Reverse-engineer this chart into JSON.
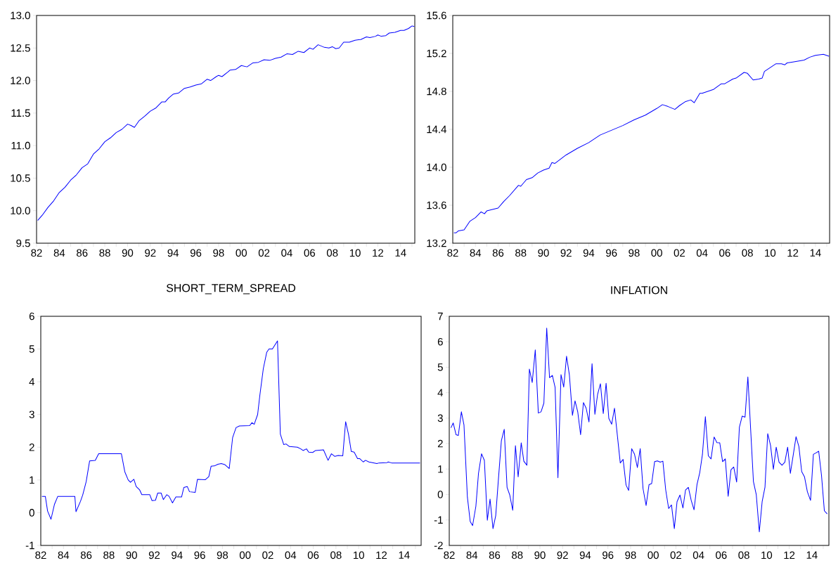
{
  "chart_data": [
    {
      "type": "line",
      "color": "#0000ff",
      "x": [
        1982.1,
        1982.5,
        1983.0,
        1983.5,
        1984.0,
        1984.5,
        1985.0,
        1985.5,
        1986.0,
        1986.5,
        1987.0,
        1987.5,
        1988.0,
        1988.5,
        1989.0,
        1989.5,
        1990.0,
        1990.3,
        1990.6,
        1991.0,
        1991.5,
        1992.0,
        1992.5,
        1993.0,
        1993.3,
        1993.6,
        1994.0,
        1994.5,
        1995.0,
        1995.5,
        1996.0,
        1996.5,
        1997.0,
        1997.3,
        1997.8,
        1998.0,
        1998.3,
        1998.8,
        1999.0,
        1999.5,
        2000.0,
        2000.5,
        2001.0,
        2001.5,
        2002.0,
        2002.5,
        2003.0,
        2003.5,
        2004.0,
        2004.5,
        2005.0,
        2005.5,
        2006.0,
        2006.3,
        2006.75,
        2007.3,
        2007.7,
        2008.0,
        2008.3,
        2008.6,
        2009.0,
        2009.5,
        2010.0,
        2010.5,
        2011.0,
        2011.3,
        2011.8,
        2012.0,
        2012.3,
        2012.7,
        2013.0,
        2013.5,
        2014.0,
        2014.3,
        2014.7,
        2015.0,
        2015.2
      ],
      "values": [
        9.85,
        9.93,
        10.05,
        10.15,
        10.28,
        10.36,
        10.47,
        10.55,
        10.66,
        10.72,
        10.87,
        10.95,
        11.06,
        11.12,
        11.2,
        11.25,
        11.33,
        11.31,
        11.28,
        11.38,
        11.45,
        11.53,
        11.58,
        11.67,
        11.67,
        11.73,
        11.79,
        11.81,
        11.88,
        11.9,
        11.93,
        11.95,
        12.02,
        12.0,
        12.06,
        12.08,
        12.06,
        12.13,
        12.16,
        12.17,
        12.23,
        12.21,
        12.27,
        12.28,
        12.32,
        12.31,
        12.34,
        12.36,
        12.41,
        12.4,
        12.45,
        12.43,
        12.5,
        12.48,
        12.55,
        12.51,
        12.5,
        12.52,
        12.49,
        12.5,
        12.59,
        12.59,
        12.62,
        12.63,
        12.67,
        12.66,
        12.68,
        12.7,
        12.68,
        12.69,
        12.73,
        12.74,
        12.77,
        12.77,
        12.8,
        12.84,
        12.83
      ],
      "xlim": [
        1982,
        2015.25
      ],
      "ylim": [
        9.5,
        13.0
      ],
      "xticks": [
        {
          "value": 1982,
          "label": "82"
        },
        {
          "value": 1983,
          "label": null
        },
        {
          "value": 1984,
          "label": "84"
        },
        {
          "value": 1985,
          "label": null
        },
        {
          "value": 1986,
          "label": "86"
        },
        {
          "value": 1987,
          "label": null
        },
        {
          "value": 1988,
          "label": "88"
        },
        {
          "value": 1989,
          "label": null
        },
        {
          "value": 1990,
          "label": "90"
        },
        {
          "value": 1991,
          "label": null
        },
        {
          "value": 1992,
          "label": "92"
        },
        {
          "value": 1993,
          "label": null
        },
        {
          "value": 1994,
          "label": "94"
        },
        {
          "value": 1995,
          "label": null
        },
        {
          "value": 1996,
          "label": "96"
        },
        {
          "value": 1997,
          "label": null
        },
        {
          "value": 1998,
          "label": "98"
        },
        {
          "value": 1999,
          "label": null
        },
        {
          "value": 2000,
          "label": "00"
        },
        {
          "value": 2001,
          "label": null
        },
        {
          "value": 2002,
          "label": "02"
        },
        {
          "value": 2003,
          "label": null
        },
        {
          "value": 2004,
          "label": "04"
        },
        {
          "value": 2005,
          "label": null
        },
        {
          "value": 2006,
          "label": "06"
        },
        {
          "value": 2007,
          "label": null
        },
        {
          "value": 2008,
          "label": "08"
        },
        {
          "value": 2009,
          "label": null
        },
        {
          "value": 2010,
          "label": "10"
        },
        {
          "value": 2011,
          "label": null
        },
        {
          "value": 2012,
          "label": "12"
        },
        {
          "value": 2013,
          "label": null
        },
        {
          "value": 2014,
          "label": "14"
        },
        {
          "value": 2015,
          "label": null
        }
      ],
      "yticks": [
        {
          "value": 9.5,
          "label": "9.5"
        },
        {
          "value": 10,
          "label": "10.0"
        },
        {
          "value": 10.5,
          "label": "10.5"
        },
        {
          "value": 11,
          "label": "11.0"
        },
        {
          "value": 11.5,
          "label": "11.5"
        },
        {
          "value": 12,
          "label": "12.0"
        },
        {
          "value": 12.5,
          "label": "12.5"
        },
        {
          "value": 13,
          "label": "13.0"
        }
      ]
    },
    {
      "type": "line",
      "color": "#0000ff",
      "x": [
        1982.1,
        1982.3,
        1982.5,
        1983.0,
        1983.5,
        1984.0,
        1984.5,
        1984.8,
        1985.0,
        1986.0,
        1986.5,
        1987.0,
        1987.8,
        1988.0,
        1988.5,
        1989.0,
        1989.5,
        1990.0,
        1990.5,
        1990.75,
        1991.0,
        1992.0,
        1993.0,
        1994.0,
        1995.0,
        1996.0,
        1997.0,
        1998.0,
        1999.0,
        2000.0,
        2000.5,
        2001.0,
        2001.6,
        2002.0,
        2002.5,
        2003.0,
        2003.3,
        2003.8,
        2004.0,
        2005.0,
        2005.7,
        2006.0,
        2006.7,
        2007.0,
        2007.7,
        2008.0,
        2008.5,
        2009.0,
        2009.3,
        2009.5,
        2010.0,
        2010.5,
        2011.0,
        2011.3,
        2011.5,
        2012.0,
        2013.0,
        2013.5,
        2014.0,
        2014.7,
        2015.2
      ],
      "values": [
        13.31,
        13.31,
        13.33,
        13.34,
        13.43,
        13.47,
        13.53,
        13.51,
        13.54,
        13.57,
        13.64,
        13.7,
        13.81,
        13.8,
        13.87,
        13.89,
        13.94,
        13.97,
        13.99,
        14.05,
        14.04,
        14.13,
        14.2,
        14.26,
        14.34,
        14.39,
        14.44,
        14.5,
        14.55,
        14.62,
        14.66,
        14.64,
        14.61,
        14.65,
        14.69,
        14.71,
        14.68,
        14.78,
        14.78,
        14.82,
        14.88,
        14.88,
        14.93,
        14.94,
        15.0,
        14.99,
        14.92,
        14.93,
        14.94,
        15.01,
        15.05,
        15.09,
        15.09,
        15.08,
        15.1,
        15.11,
        15.13,
        15.16,
        15.18,
        15.19,
        15.17
      ],
      "xlim": [
        1982,
        2015.25
      ],
      "ylim": [
        13.2,
        15.6
      ],
      "xticks": [
        {
          "value": 1982,
          "label": "82"
        },
        {
          "value": 1983,
          "label": null
        },
        {
          "value": 1984,
          "label": "84"
        },
        {
          "value": 1985,
          "label": null
        },
        {
          "value": 1986,
          "label": "86"
        },
        {
          "value": 1987,
          "label": null
        },
        {
          "value": 1988,
          "label": "88"
        },
        {
          "value": 1989,
          "label": null
        },
        {
          "value": 1990,
          "label": "90"
        },
        {
          "value": 1991,
          "label": null
        },
        {
          "value": 1992,
          "label": "92"
        },
        {
          "value": 1993,
          "label": null
        },
        {
          "value": 1994,
          "label": "94"
        },
        {
          "value": 1995,
          "label": null
        },
        {
          "value": 1996,
          "label": "96"
        },
        {
          "value": 1997,
          "label": null
        },
        {
          "value": 1998,
          "label": "98"
        },
        {
          "value": 1999,
          "label": null
        },
        {
          "value": 2000,
          "label": "00"
        },
        {
          "value": 2001,
          "label": null
        },
        {
          "value": 2002,
          "label": "02"
        },
        {
          "value": 2003,
          "label": null
        },
        {
          "value": 2004,
          "label": "04"
        },
        {
          "value": 2005,
          "label": null
        },
        {
          "value": 2006,
          "label": "06"
        },
        {
          "value": 2007,
          "label": null
        },
        {
          "value": 2008,
          "label": "08"
        },
        {
          "value": 2009,
          "label": null
        },
        {
          "value": 2010,
          "label": "10"
        },
        {
          "value": 2011,
          "label": null
        },
        {
          "value": 2012,
          "label": "12"
        },
        {
          "value": 2013,
          "label": null
        },
        {
          "value": 2014,
          "label": "14"
        },
        {
          "value": 2015,
          "label": null
        }
      ],
      "yticks": [
        13.2,
        13.6,
        {
          "value": 14,
          "label": "14.0"
        },
        14.4,
        14.8,
        15.2,
        15.6
      ]
    },
    {
      "type": "line",
      "color": "#0000ff",
      "title": "SHORT_TERM_SPREAD",
      "x": [
        1982.1,
        1982.4,
        1982.6,
        1982.9,
        1983.2,
        1983.5,
        1985.0,
        1985.1,
        1985.5,
        1985.7,
        1986.0,
        1986.3,
        1986.8,
        1987.1,
        1989.1,
        1989.4,
        1989.7,
        1989.9,
        1990.2,
        1990.4,
        1990.7,
        1990.9,
        1991.6,
        1991.8,
        1992.1,
        1992.3,
        1992.6,
        1992.8,
        1993.1,
        1993.3,
        1993.6,
        1993.9,
        1994.4,
        1994.6,
        1994.9,
        1995.1,
        1995.6,
        1995.8,
        1996.5,
        1996.8,
        1997.0,
        1997.3,
        1997.6,
        1997.9,
        1998.2,
        1998.6,
        1998.9,
        1999.2,
        1999.5,
        2000.4,
        2000.6,
        2000.8,
        2001.1,
        2001.3,
        2001.6,
        2001.9,
        2002.1,
        2002.4,
        2002.85,
        2003.1,
        2003.4,
        2003.6,
        2003.9,
        2004.6,
        2004.9,
        2005.1,
        2005.4,
        2005.6,
        2005.95,
        2006.2,
        2006.9,
        2007.3,
        2007.6,
        2007.9,
        2008.2,
        2008.6,
        2008.85,
        2009.1,
        2009.35,
        2009.6,
        2009.9,
        2010.1,
        2010.4,
        2010.6,
        2010.9,
        2011.6,
        2011.8,
        2012.5,
        2012.6,
        2012.9,
        2015.4
      ],
      "values": [
        0.5,
        0.5,
        0.05,
        -0.2,
        0.25,
        0.5,
        0.5,
        0.03,
        0.35,
        0.55,
        0.95,
        1.58,
        1.6,
        1.8,
        1.8,
        1.25,
        1.0,
        0.93,
        1.02,
        0.8,
        0.7,
        0.55,
        0.55,
        0.37,
        0.38,
        0.6,
        0.6,
        0.4,
        0.55,
        0.5,
        0.3,
        0.48,
        0.48,
        0.77,
        0.8,
        0.64,
        0.62,
        1.02,
        1.01,
        1.1,
        1.42,
        1.43,
        1.48,
        1.5,
        1.47,
        1.35,
        2.3,
        2.6,
        2.65,
        2.66,
        2.75,
        2.7,
        3.0,
        3.6,
        4.4,
        4.9,
        5.0,
        5.0,
        5.25,
        2.4,
        2.08,
        2.1,
        2.02,
        2.0,
        1.95,
        1.9,
        1.95,
        1.85,
        1.84,
        1.9,
        1.92,
        1.6,
        1.8,
        1.72,
        1.75,
        1.74,
        2.78,
        2.4,
        1.87,
        1.85,
        1.65,
        1.65,
        1.55,
        1.6,
        1.55,
        1.5,
        1.52,
        1.53,
        1.55,
        1.52,
        1.52
      ],
      "xlim": [
        1982,
        2015.5
      ],
      "ylim": [
        -1,
        6
      ],
      "xticks": [
        {
          "value": 1982,
          "label": "82"
        },
        {
          "value": 1983,
          "label": null
        },
        {
          "value": 1984,
          "label": "84"
        },
        {
          "value": 1985,
          "label": null
        },
        {
          "value": 1986,
          "label": "86"
        },
        {
          "value": 1987,
          "label": null
        },
        {
          "value": 1988,
          "label": "88"
        },
        {
          "value": 1989,
          "label": null
        },
        {
          "value": 1990,
          "label": "90"
        },
        {
          "value": 1991,
          "label": null
        },
        {
          "value": 1992,
          "label": "92"
        },
        {
          "value": 1993,
          "label": null
        },
        {
          "value": 1994,
          "label": "94"
        },
        {
          "value": 1995,
          "label": null
        },
        {
          "value": 1996,
          "label": "96"
        },
        {
          "value": 1997,
          "label": null
        },
        {
          "value": 1998,
          "label": "98"
        },
        {
          "value": 1999,
          "label": null
        },
        {
          "value": 2000,
          "label": "00"
        },
        {
          "value": 2001,
          "label": null
        },
        {
          "value": 2002,
          "label": "02"
        },
        {
          "value": 2003,
          "label": null
        },
        {
          "value": 2004,
          "label": "04"
        },
        {
          "value": 2005,
          "label": null
        },
        {
          "value": 2006,
          "label": "06"
        },
        {
          "value": 2007,
          "label": null
        },
        {
          "value": 2008,
          "label": "08"
        },
        {
          "value": 2009,
          "label": null
        },
        {
          "value": 2010,
          "label": "10"
        },
        {
          "value": 2011,
          "label": null
        },
        {
          "value": 2012,
          "label": "12"
        },
        {
          "value": 2013,
          "label": null
        },
        {
          "value": 2014,
          "label": "14"
        },
        {
          "value": 2015,
          "label": null
        }
      ],
      "yticks": [
        -1,
        0,
        1,
        2,
        3,
        4,
        5,
        6
      ]
    },
    {
      "type": "line",
      "color": "#0000ff",
      "title": "INFLATION",
      "x": [
        1982.15,
        1982.35,
        1982.6,
        1982.8,
        1983.07,
        1983.3,
        1983.6,
        1983.85,
        1984.06,
        1984.35,
        1984.58,
        1984.85,
        1985.1,
        1985.36,
        1985.6,
        1985.86,
        1986.1,
        1986.33,
        1986.6,
        1986.85,
        1987.1,
        1987.34,
        1987.6,
        1987.84,
        1988.08,
        1988.35,
        1988.58,
        1988.85,
        1989.07,
        1989.32,
        1989.59,
        1989.86,
        1990.1,
        1990.35,
        1990.6,
        1990.85,
        1991.1,
        1991.34,
        1991.59,
        1991.86,
        1992.1,
        1992.35,
        1992.6,
        1992.87,
        1993.1,
        1993.34,
        1993.59,
        1993.84,
        1994.08,
        1994.33,
        1994.6,
        1994.85,
        1995.09,
        1995.34,
        1995.59,
        1995.84,
        1996.08,
        1996.33,
        1996.58,
        1997.09,
        1997.34,
        1997.6,
        1997.83,
        1998.1,
        1998.35,
        1998.6,
        1998.85,
        1999.1,
        1999.37,
        1999.63,
        1999.86,
        2000.12,
        2000.37,
        2000.62,
        2000.85,
        2001.1,
        2001.36,
        2001.61,
        2001.86,
        2002.1,
        2002.36,
        2002.62,
        2002.85,
        2003.1,
        2003.35,
        2003.6,
        2003.86,
        2004.11,
        2004.34,
        2004.6,
        2004.86,
        2005.1,
        2005.37,
        2005.62,
        2005.87,
        2006.12,
        2006.36,
        2006.61,
        2006.86,
        2007.1,
        2007.36,
        2007.6,
        2007.85,
        2008.1,
        2008.35,
        2008.84,
        2009.09,
        2009.36,
        2009.61,
        2009.86,
        2010.1,
        2010.35,
        2010.6,
        2010.85,
        2011.1,
        2011.36,
        2011.61,
        2011.86,
        2012.1,
        2012.36,
        2012.6,
        2012.85,
        2013.1,
        2013.35,
        2013.6,
        2013.88,
        2014.13,
        2014.38,
        2014.6,
        2014.85,
        2015.1,
        2015.35
      ],
      "values": [
        2.62,
        2.81,
        2.35,
        2.32,
        3.25,
        2.73,
        -0.1,
        -1.06,
        -1.22,
        -0.46,
        0.83,
        1.6,
        1.34,
        -1.01,
        -0.18,
        -1.34,
        -0.83,
        0.55,
        2.12,
        2.56,
        0.28,
        -0.02,
        -0.62,
        1.92,
        0.69,
        2.03,
        1.31,
        1.15,
        4.93,
        4.4,
        5.68,
        3.2,
        3.25,
        3.59,
        6.54,
        4.59,
        4.68,
        4.21,
        0.66,
        4.71,
        4.22,
        5.43,
        4.7,
        3.11,
        3.68,
        3.24,
        2.35,
        3.61,
        3.39,
        2.85,
        5.14,
        3.15,
        3.93,
        4.35,
        3.18,
        4.37,
        2.99,
        2.76,
        3.39,
        1.24,
        1.38,
        0.37,
        0.16,
        1.8,
        1.58,
        1.06,
        1.8,
        0.23,
        -0.43,
        0.39,
        0.43,
        1.29,
        1.32,
        1.27,
        1.31,
        0.18,
        -0.55,
        -0.41,
        -1.34,
        -0.28,
        -0.02,
        -0.53,
        0.18,
        0.28,
        -0.23,
        -0.6,
        0.39,
        0.87,
        1.57,
        3.06,
        1.52,
        1.4,
        2.26,
        2.04,
        2.03,
        1.29,
        1.4,
        -0.07,
        0.97,
        1.08,
        0.49,
        2.64,
        3.08,
        3.04,
        4.62,
        0.51,
        0.0,
        -1.47,
        -0.28,
        0.29,
        2.39,
        1.93,
        0.99,
        1.86,
        1.27,
        1.15,
        1.27,
        1.86,
        0.83,
        1.57,
        2.27,
        1.89,
        0.9,
        0.69,
        0.11,
        -0.23,
        1.58,
        1.64,
        1.7,
        0.74,
        -0.64,
        -0.76
      ],
      "xlim": [
        1982,
        2015.5
      ],
      "ylim": [
        -2,
        7
      ],
      "xticks": [
        {
          "value": 1982,
          "label": "82"
        },
        {
          "value": 1983,
          "label": null
        },
        {
          "value": 1984,
          "label": "84"
        },
        {
          "value": 1985,
          "label": null
        },
        {
          "value": 1986,
          "label": "86"
        },
        {
          "value": 1987,
          "label": null
        },
        {
          "value": 1988,
          "label": "88"
        },
        {
          "value": 1989,
          "label": null
        },
        {
          "value": 1990,
          "label": "90"
        },
        {
          "value": 1991,
          "label": null
        },
        {
          "value": 1992,
          "label": "92"
        },
        {
          "value": 1993,
          "label": null
        },
        {
          "value": 1994,
          "label": "94"
        },
        {
          "value": 1995,
          "label": null
        },
        {
          "value": 1996,
          "label": "96"
        },
        {
          "value": 1997,
          "label": null
        },
        {
          "value": 1998,
          "label": "98"
        },
        {
          "value": 1999,
          "label": null
        },
        {
          "value": 2000,
          "label": "00"
        },
        {
          "value": 2001,
          "label": null
        },
        {
          "value": 2002,
          "label": "02"
        },
        {
          "value": 2003,
          "label": null
        },
        {
          "value": 2004,
          "label": "04"
        },
        {
          "value": 2005,
          "label": null
        },
        {
          "value": 2006,
          "label": "06"
        },
        {
          "value": 2007,
          "label": null
        },
        {
          "value": 2008,
          "label": "08"
        },
        {
          "value": 2009,
          "label": null
        },
        {
          "value": 2010,
          "label": "10"
        },
        {
          "value": 2011,
          "label": null
        },
        {
          "value": 2012,
          "label": "12"
        },
        {
          "value": 2013,
          "label": null
        },
        {
          "value": 2014,
          "label": "14"
        },
        {
          "value": 2015,
          "label": null
        }
      ],
      "yticks": [
        -2,
        -1,
        0,
        1,
        2,
        3,
        4,
        5,
        6,
        7
      ]
    }
  ]
}
